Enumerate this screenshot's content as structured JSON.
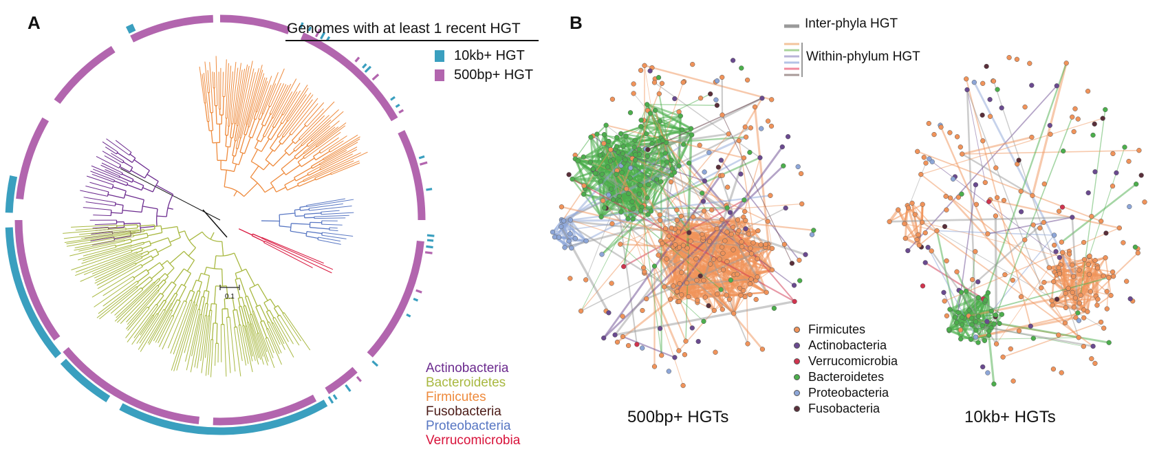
{
  "panelA": {
    "letter": "A",
    "legend_title": "Genomes with at least 1 recent HGT",
    "legend": [
      {
        "label": "10kb+ HGT",
        "color": "#3a9fbf"
      },
      {
        "label": "500bp+ HGT",
        "color": "#b265ae"
      }
    ],
    "scale_label": "0.1",
    "phyla": [
      {
        "name": "Actinobacteria",
        "color": "#6b2a8e"
      },
      {
        "name": "Bacteroidetes",
        "color": "#a8b840"
      },
      {
        "name": "Firmicutes",
        "color": "#ee8a3c"
      },
      {
        "name": "Fusobacteria",
        "color": "#4a1a16"
      },
      {
        "name": "Proteobacteria",
        "color": "#5877c3"
      },
      {
        "name": "Verrucomicrobia",
        "color": "#d8123a"
      }
    ]
  },
  "panelB": {
    "letter": "B",
    "inter_label": "Inter-phyla HGT",
    "within_label": "Within-phylum HGT",
    "inter_color": "#9a9a9a",
    "within_colors": [
      "#f3c49c",
      "#a9d49b",
      "#b9b3d8",
      "#b3c3e6",
      "#f08a9e",
      "#a89a98"
    ],
    "node_legend": [
      {
        "name": "Firmicutes",
        "color": "#f0935a"
      },
      {
        "name": "Actinobacteria",
        "color": "#6a4a8f"
      },
      {
        "name": "Verrucomicrobia",
        "color": "#d0344e"
      },
      {
        "name": "Bacteroidetes",
        "color": "#4cae4c"
      },
      {
        "name": "Proteobacteria",
        "color": "#8da6d8"
      },
      {
        "name": "Fusobacteria",
        "color": "#5a2f3a"
      }
    ],
    "net1_label": "500bp+ HGTs",
    "net2_label": "10kb+ HGTs"
  }
}
